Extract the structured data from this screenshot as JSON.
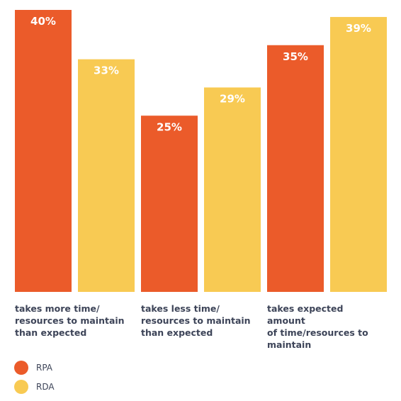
{
  "chart_data": {
    "type": "bar",
    "categories": [
      "takes more time/ resources to maintain than expected",
      "takes less time/ resources to maintain than expected",
      "takes expected amount of time/resources to maintain"
    ],
    "category_lines": [
      [
        "takes more time/",
        "resources to maintain",
        "than expected"
      ],
      [
        "takes less time/",
        "resources to maintain",
        "than expected"
      ],
      [
        "takes expected amount",
        "of time/resources to",
        "maintain"
      ]
    ],
    "series": [
      {
        "name": "RPA",
        "values": [
          40,
          25,
          35
        ],
        "labels": [
          "40%",
          "25%",
          "35%"
        ],
        "color": "#eb5b2a"
      },
      {
        "name": "RDA",
        "values": [
          33,
          29,
          39
        ],
        "labels": [
          "33%",
          "29%",
          "39%"
        ],
        "color": "#f8ca53"
      }
    ],
    "ylim": [
      0,
      40
    ],
    "grid": false,
    "legend_position": "bottom-left"
  }
}
